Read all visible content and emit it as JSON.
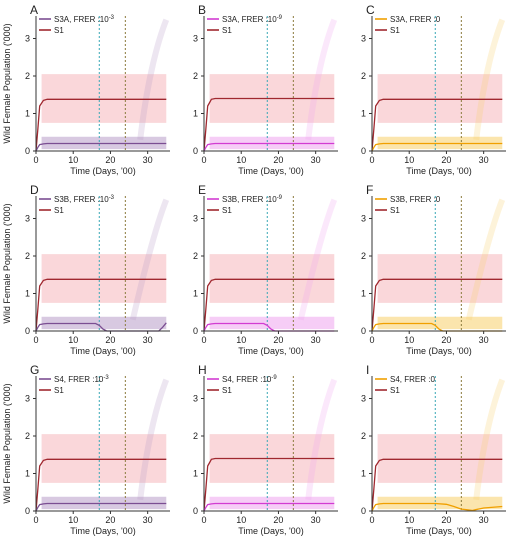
{
  "figure": {
    "y_axis_label": "Wild Female Population ('000)",
    "x_axis_label": "Time (Days, '00)"
  },
  "colors": {
    "s1": "#a0282f",
    "s1_band": "#f6b6bc",
    "purple": "#7b4e92",
    "purple_band": "#b89cc8",
    "magenta": "#d23cd2",
    "magenta_band": "#efa4ef",
    "orange": "#f0a000",
    "orange_band": "#f7cf6a",
    "teal_line": "#38a7b6",
    "olive_line": "#8a7a3c"
  },
  "chart_data": [
    {
      "panel": "A",
      "type": "line",
      "legend": [
        {
          "label": "S3A, FRER :10",
          "exp": "-3",
          "color": "purple"
        },
        {
          "label": "S1",
          "exp": "",
          "color": "s1"
        }
      ],
      "xlabel": "Time (Days, '00)",
      "ylabel": "Wild Female Population ('000)",
      "xlim": [
        0,
        36
      ],
      "ylim": [
        0,
        3.6
      ],
      "xticks": [
        0,
        10,
        20,
        30
      ],
      "yticks": [
        0,
        1,
        2,
        3
      ],
      "vlines": [
        {
          "x": 17,
          "color": "teal_line"
        },
        {
          "x": 24,
          "color": "olive_line"
        }
      ],
      "series": [
        {
          "name": "S1",
          "x": [
            0,
            0.5,
            1,
            2,
            3,
            35
          ],
          "y": [
            0,
            0.6,
            1.2,
            1.35,
            1.38,
            1.38
          ],
          "band_lo": 0.75,
          "band_hi": 2.05,
          "color": "s1"
        },
        {
          "name": "S3A, FRER :10^-3",
          "x": [
            0,
            0.5,
            1,
            2,
            3,
            35
          ],
          "y": [
            0,
            0.1,
            0.17,
            0.19,
            0.2,
            0.2
          ],
          "band_lo": 0.05,
          "band_hi": 0.38,
          "color": "purple"
        }
      ]
    },
    {
      "panel": "B",
      "type": "line",
      "legend": [
        {
          "label": "S3A, FRER :10",
          "exp": "-9",
          "color": "magenta"
        },
        {
          "label": "S1",
          "exp": "",
          "color": "s1"
        }
      ],
      "xlabel": "Time (Days, '00)",
      "ylabel": "",
      "xlim": [
        0,
        36
      ],
      "ylim": [
        0,
        3.6
      ],
      "xticks": [
        0,
        10,
        20,
        30
      ],
      "yticks": [
        0,
        1,
        2,
        3
      ],
      "vlines": [
        {
          "x": 17,
          "color": "teal_line"
        },
        {
          "x": 24,
          "color": "olive_line"
        }
      ],
      "series": [
        {
          "name": "S1",
          "x": [
            0,
            0.5,
            1,
            2,
            3,
            35
          ],
          "y": [
            0,
            0.6,
            1.2,
            1.38,
            1.4,
            1.4
          ],
          "band_lo": 0.75,
          "band_hi": 2.05,
          "color": "s1"
        },
        {
          "name": "S3A, FRER :10^-9",
          "x": [
            0,
            0.5,
            1,
            2,
            3,
            35
          ],
          "y": [
            0,
            0.1,
            0.17,
            0.19,
            0.2,
            0.2
          ],
          "band_lo": 0.05,
          "band_hi": 0.38,
          "color": "magenta"
        }
      ]
    },
    {
      "panel": "C",
      "type": "line",
      "legend": [
        {
          "label": "S3A, FRER :0",
          "exp": "",
          "color": "orange"
        },
        {
          "label": "S1",
          "exp": "",
          "color": "s1"
        }
      ],
      "xlabel": "Time (Days, '00)",
      "ylabel": "",
      "xlim": [
        0,
        36
      ],
      "ylim": [
        0,
        3.6
      ],
      "xticks": [
        0,
        10,
        20,
        30
      ],
      "yticks": [
        0,
        1,
        2,
        3
      ],
      "vlines": [
        {
          "x": 17,
          "color": "teal_line"
        },
        {
          "x": 24,
          "color": "olive_line"
        }
      ],
      "series": [
        {
          "name": "S1",
          "x": [
            0,
            0.5,
            1,
            2,
            3,
            35
          ],
          "y": [
            0,
            0.6,
            1.2,
            1.35,
            1.38,
            1.38
          ],
          "band_lo": 0.75,
          "band_hi": 2.05,
          "color": "s1"
        },
        {
          "name": "S3A, FRER :0",
          "x": [
            0,
            0.5,
            1,
            2,
            3,
            35
          ],
          "y": [
            0,
            0.1,
            0.17,
            0.19,
            0.2,
            0.2
          ],
          "band_lo": 0.05,
          "band_hi": 0.38,
          "color": "orange"
        }
      ]
    },
    {
      "panel": "D",
      "type": "line",
      "legend": [
        {
          "label": "S3B, FRER :10",
          "exp": "-3",
          "color": "purple"
        },
        {
          "label": "S1",
          "exp": "",
          "color": "s1"
        }
      ],
      "xlabel": "Time (Days, '00)",
      "ylabel": "Wild Female Population ('000)",
      "xlim": [
        0,
        36
      ],
      "ylim": [
        0,
        3.6
      ],
      "xticks": [
        0,
        10,
        20,
        30
      ],
      "yticks": [
        0,
        1,
        2,
        3
      ],
      "vlines": [
        {
          "x": 17,
          "color": "teal_line"
        },
        {
          "x": 24,
          "color": "olive_line"
        }
      ],
      "series": [
        {
          "name": "S1",
          "x": [
            0,
            0.5,
            1,
            2,
            3,
            35
          ],
          "y": [
            0,
            0.6,
            1.2,
            1.35,
            1.38,
            1.38
          ],
          "band_lo": 0.75,
          "band_hi": 2.05,
          "color": "s1"
        },
        {
          "name": "S3B, FRER :10^-3",
          "x": [
            0,
            0.5,
            1,
            2,
            3,
            16,
            17,
            18,
            19,
            33,
            34,
            35
          ],
          "y": [
            0,
            0.1,
            0.17,
            0.19,
            0.2,
            0.2,
            0.15,
            0.05,
            0,
            0,
            0.1,
            0.22
          ],
          "band_lo": 0.05,
          "band_hi": 0.38,
          "color": "purple"
        }
      ]
    },
    {
      "panel": "E",
      "type": "line",
      "legend": [
        {
          "label": "S3B, FRER :10",
          "exp": "-9",
          "color": "magenta"
        },
        {
          "label": "S1",
          "exp": "",
          "color": "s1"
        }
      ],
      "xlabel": "Time (Days, '00)",
      "ylabel": "",
      "xlim": [
        0,
        36
      ],
      "ylim": [
        0,
        3.6
      ],
      "xticks": [
        0,
        10,
        20,
        30
      ],
      "yticks": [
        0,
        1,
        2,
        3
      ],
      "vlines": [
        {
          "x": 17,
          "color": "teal_line"
        },
        {
          "x": 24,
          "color": "olive_line"
        }
      ],
      "series": [
        {
          "name": "S1",
          "x": [
            0,
            0.5,
            1,
            2,
            3,
            35
          ],
          "y": [
            0,
            0.6,
            1.2,
            1.35,
            1.38,
            1.38
          ],
          "band_lo": 0.75,
          "band_hi": 2.05,
          "color": "s1"
        },
        {
          "name": "S3B, FRER :10^-9",
          "x": [
            0,
            0.5,
            1,
            2,
            3,
            16,
            17,
            18,
            19,
            35
          ],
          "y": [
            0,
            0.1,
            0.17,
            0.19,
            0.2,
            0.2,
            0.15,
            0.05,
            0,
            0
          ],
          "band_lo": 0.05,
          "band_hi": 0.38,
          "color": "magenta"
        }
      ]
    },
    {
      "panel": "F",
      "type": "line",
      "legend": [
        {
          "label": "S3B, FRER :0",
          "exp": "",
          "color": "orange"
        },
        {
          "label": "S1",
          "exp": "",
          "color": "s1"
        }
      ],
      "xlabel": "Time (Days, '00)",
      "ylabel": "",
      "xlim": [
        0,
        36
      ],
      "ylim": [
        0,
        3.6
      ],
      "xticks": [
        0,
        10,
        20,
        30
      ],
      "yticks": [
        0,
        1,
        2,
        3
      ],
      "vlines": [
        {
          "x": 17,
          "color": "teal_line"
        },
        {
          "x": 24,
          "color": "olive_line"
        }
      ],
      "series": [
        {
          "name": "S1",
          "x": [
            0,
            0.5,
            1,
            2,
            3,
            35
          ],
          "y": [
            0,
            0.6,
            1.2,
            1.35,
            1.38,
            1.38
          ],
          "band_lo": 0.75,
          "band_hi": 2.05,
          "color": "s1"
        },
        {
          "name": "S3B, FRER :0",
          "x": [
            0,
            0.5,
            1,
            2,
            3,
            16,
            17,
            18,
            19,
            35
          ],
          "y": [
            0,
            0.1,
            0.17,
            0.19,
            0.2,
            0.2,
            0.15,
            0.05,
            0,
            0
          ],
          "band_lo": 0.05,
          "band_hi": 0.38,
          "color": "orange"
        }
      ]
    },
    {
      "panel": "G",
      "type": "line",
      "legend": [
        {
          "label": "S4, FRER :10",
          "exp": "-3",
          "color": "purple"
        },
        {
          "label": "S1",
          "exp": "",
          "color": "s1"
        }
      ],
      "xlabel": "Time (Days, '00)",
      "ylabel": "Wild Female Population ('000)",
      "xlim": [
        0,
        36
      ],
      "ylim": [
        0,
        3.6
      ],
      "xticks": [
        0,
        10,
        20,
        30
      ],
      "yticks": [
        0,
        1,
        2,
        3
      ],
      "vlines": [
        {
          "x": 17,
          "color": "teal_line"
        },
        {
          "x": 24,
          "color": "olive_line"
        }
      ],
      "series": [
        {
          "name": "S1",
          "x": [
            0,
            0.5,
            1,
            2,
            3,
            35
          ],
          "y": [
            0,
            0.6,
            1.2,
            1.35,
            1.38,
            1.38
          ],
          "band_lo": 0.75,
          "band_hi": 2.05,
          "color": "s1"
        },
        {
          "name": "S4, FRER :10^-3",
          "x": [
            0,
            0.5,
            1,
            2,
            3,
            35
          ],
          "y": [
            0,
            0.1,
            0.17,
            0.19,
            0.2,
            0.2
          ],
          "band_lo": 0.05,
          "band_hi": 0.38,
          "color": "purple"
        }
      ]
    },
    {
      "panel": "H",
      "type": "line",
      "legend": [
        {
          "label": "S4, FRER :10",
          "exp": "-9",
          "color": "magenta"
        },
        {
          "label": "S1",
          "exp": "",
          "color": "s1"
        }
      ],
      "xlabel": "Time (Days, '00)",
      "ylabel": "",
      "xlim": [
        0,
        36
      ],
      "ylim": [
        0,
        3.6
      ],
      "xticks": [
        0,
        10,
        20,
        30
      ],
      "yticks": [
        0,
        1,
        2,
        3
      ],
      "vlines": [
        {
          "x": 17,
          "color": "teal_line"
        },
        {
          "x": 24,
          "color": "olive_line"
        }
      ],
      "series": [
        {
          "name": "S1",
          "x": [
            0,
            0.5,
            1,
            2,
            3,
            35
          ],
          "y": [
            0,
            0.6,
            1.2,
            1.38,
            1.4,
            1.4
          ],
          "band_lo": 0.75,
          "band_hi": 2.05,
          "color": "s1"
        },
        {
          "name": "S4, FRER :10^-9",
          "x": [
            0,
            0.5,
            1,
            2,
            3,
            35
          ],
          "y": [
            0,
            0.1,
            0.17,
            0.19,
            0.2,
            0.2
          ],
          "band_lo": 0.05,
          "band_hi": 0.38,
          "color": "magenta"
        }
      ]
    },
    {
      "panel": "I",
      "type": "line",
      "legend": [
        {
          "label": "S4, FRER :0",
          "exp": "",
          "color": "orange"
        },
        {
          "label": "S1",
          "exp": "",
          "color": "s1"
        }
      ],
      "xlabel": "Time (Days, '00)",
      "ylabel": "",
      "xlim": [
        0,
        36
      ],
      "ylim": [
        0,
        3.6
      ],
      "xticks": [
        0,
        10,
        20,
        30
      ],
      "yticks": [
        0,
        1,
        2,
        3
      ],
      "vlines": [
        {
          "x": 17,
          "color": "teal_line"
        },
        {
          "x": 24,
          "color": "olive_line"
        }
      ],
      "series": [
        {
          "name": "S1",
          "x": [
            0,
            0.5,
            1,
            2,
            3,
            35
          ],
          "y": [
            0,
            0.6,
            1.2,
            1.35,
            1.38,
            1.38
          ],
          "band_lo": 0.75,
          "band_hi": 2.05,
          "color": "s1"
        },
        {
          "name": "S4, FRER :0",
          "x": [
            0,
            0.5,
            1,
            2,
            3,
            17,
            20,
            22,
            24,
            27,
            30,
            35
          ],
          "y": [
            0,
            0.1,
            0.17,
            0.19,
            0.2,
            0.2,
            0.18,
            0.12,
            0.05,
            0.02,
            0.08,
            0.12
          ],
          "band_lo": 0.05,
          "band_hi": 0.38,
          "color": "orange"
        }
      ]
    }
  ]
}
